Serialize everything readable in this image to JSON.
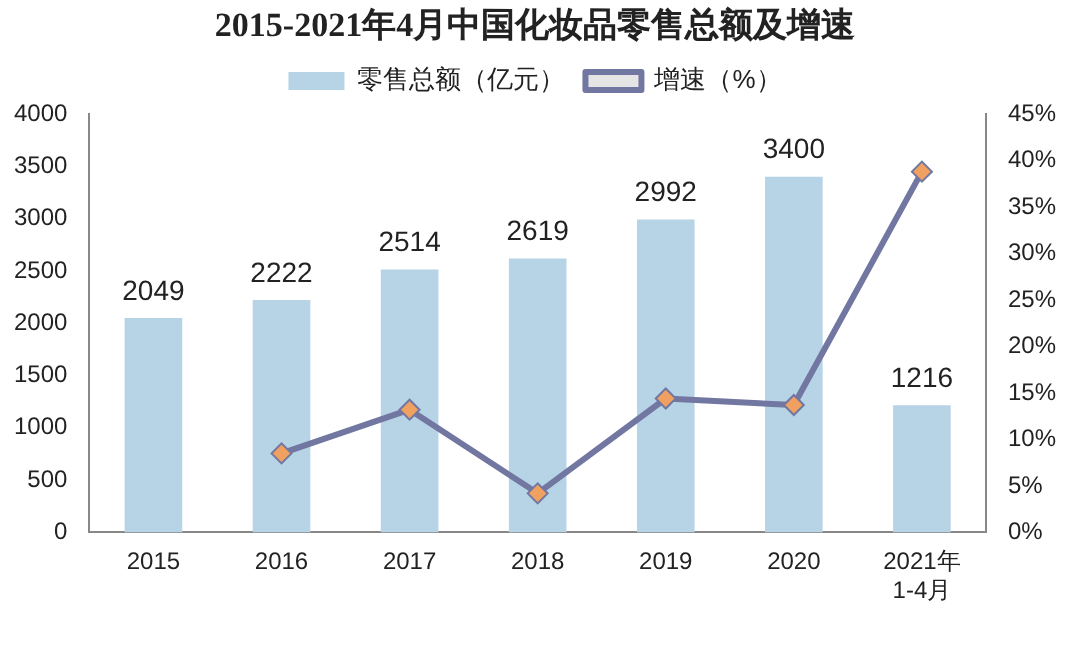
{
  "chart_data": {
    "type": "bar",
    "title": "2015-2021年4月中国化妆品零售总额及增速",
    "categories": [
      "2015",
      "2016",
      "2017",
      "2018",
      "2019",
      "2020",
      "2021年\n1-4月"
    ],
    "series": [
      {
        "name": "零售总额（亿元）",
        "color": "#b7d3e6",
        "values": [
          2049,
          2222,
          2514,
          2619,
          2992,
          3400,
          1216
        ],
        "value_labels": [
          "2049",
          "2222",
          "2514",
          "2619",
          "2992",
          "3400",
          "1216"
        ]
      },
      {
        "name": "增速（%）",
        "type": "line",
        "axis": "y2",
        "color": "#7177a0",
        "values": [
          null,
          8.5,
          13.2,
          4.2,
          14.4,
          13.7,
          38.8
        ]
      }
    ],
    "ylim": [
      0,
      4000
    ],
    "yticks": [
      0,
      500,
      1000,
      1500,
      2000,
      2500,
      3000,
      3500,
      4000
    ],
    "y2lim": [
      0,
      45
    ],
    "y2ticks": [
      {
        "value": 0,
        "label": "0%"
      },
      {
        "value": 5,
        "label": "5%"
      },
      {
        "value": 10,
        "label": "10%"
      },
      {
        "value": 15,
        "label": "15%"
      },
      {
        "value": 20,
        "label": "20%"
      },
      {
        "value": 25,
        "label": "25%"
      },
      {
        "value": 30,
        "label": "30%"
      },
      {
        "value": 35,
        "label": "35%"
      },
      {
        "value": 40,
        "label": "40%"
      },
      {
        "value": 45,
        "label": "45%"
      }
    ],
    "legend": "top",
    "marker": "diamond",
    "grid": false
  }
}
